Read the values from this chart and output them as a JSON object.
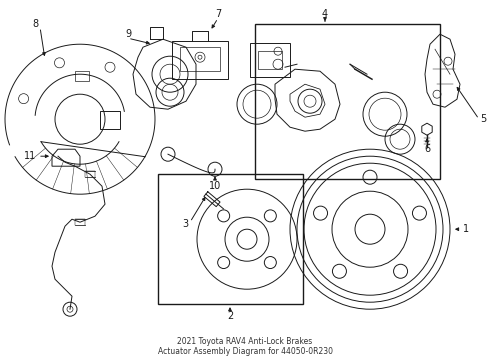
{
  "title": "2021 Toyota RAV4 Anti-Lock Brakes\nActuator Assembly Diagram for 44050-0R230",
  "bg_color": "#ffffff",
  "line_color": "#1a1a1a",
  "fig_w": 4.9,
  "fig_h": 3.6,
  "dpi": 100
}
